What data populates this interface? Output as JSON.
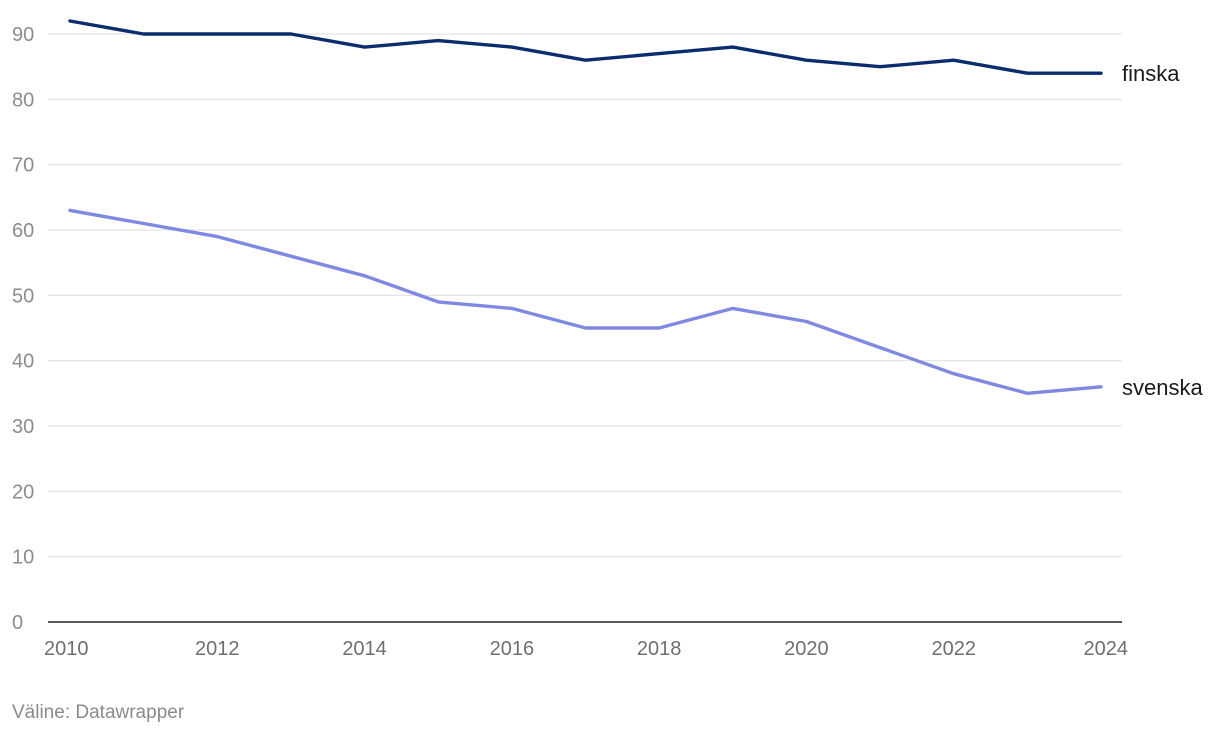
{
  "chart_data": {
    "type": "line",
    "title": "",
    "xlabel": "",
    "ylabel": "",
    "x": [
      2010,
      2011,
      2012,
      2013,
      2014,
      2015,
      2016,
      2017,
      2018,
      2019,
      2020,
      2021,
      2022,
      2023,
      2024
    ],
    "xticks": [
      "2010",
      "2012",
      "2014",
      "2016",
      "2018",
      "2020",
      "2022",
      "2024"
    ],
    "yticks": [
      "0",
      "10",
      "20",
      "30",
      "40",
      "50",
      "60",
      "70",
      "80",
      "90"
    ],
    "ylim": [
      0,
      92
    ],
    "grid": true,
    "series": [
      {
        "name": "finska",
        "color": "#0b2d6e",
        "values": [
          92,
          90,
          90,
          90,
          88,
          89,
          88,
          86,
          87,
          88,
          86,
          85,
          86,
          84,
          84
        ]
      },
      {
        "name": "svenska",
        "color": "#7f89e1",
        "values": [
          63,
          61,
          59,
          56,
          53,
          49,
          48,
          45,
          45,
          48,
          46,
          42,
          38,
          35,
          36
        ]
      }
    ]
  },
  "source": "Väline: Datawrapper",
  "colors": {
    "grid": "#e3e3e3",
    "axis": "#222222",
    "tick_text": "#8c8c8c",
    "x_tick_text": "#6f6f6f"
  }
}
